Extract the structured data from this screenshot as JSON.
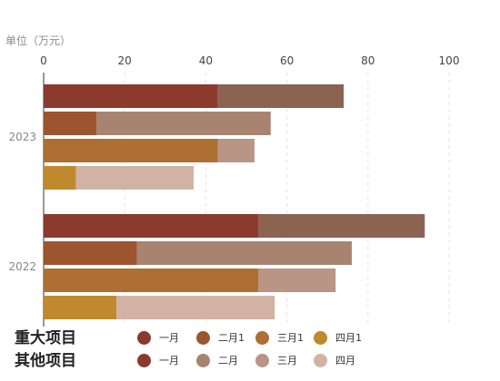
{
  "unit_label": "单位（万元）",
  "chart_data": {
    "type": "bar",
    "orientation": "horizontal",
    "stacked": true,
    "xlim": [
      0,
      100
    ],
    "xticks": [
      "0",
      "20",
      "40",
      "60",
      "80",
      "100"
    ],
    "categories": [
      "2023",
      "2022"
    ],
    "groups": [
      {
        "category": "2023",
        "bars": [
          {
            "major": 43,
            "other": 31,
            "major_color": "#8b3a2e",
            "other_color": "#8b6351"
          },
          {
            "major": 13,
            "other": 43,
            "major_color": "#9c552f",
            "other_color": "#a88470"
          },
          {
            "major": 43,
            "other": 9,
            "major_color": "#ad6f32",
            "other_color": "#b89584"
          },
          {
            "major": 8,
            "other": 29,
            "major_color": "#c0892e",
            "other_color": "#d2b3a3"
          }
        ]
      },
      {
        "category": "2022",
        "bars": [
          {
            "major": 53,
            "other": 41,
            "major_color": "#8b3a2e",
            "other_color": "#8b6351"
          },
          {
            "major": 23,
            "other": 53,
            "major_color": "#9c552f",
            "other_color": "#a88470"
          },
          {
            "major": 53,
            "other": 19,
            "major_color": "#ad6f32",
            "other_color": "#b89584"
          },
          {
            "major": 18,
            "other": 39,
            "major_color": "#c0892e",
            "other_color": "#d2b3a3"
          }
        ]
      }
    ],
    "legend": [
      {
        "title": "重大项目",
        "items": [
          {
            "label": "一月",
            "color": "#8b3a2e"
          },
          {
            "label": "二月1",
            "color": "#9c552f"
          },
          {
            "label": "三月1",
            "color": "#ad6f32"
          },
          {
            "label": "四月1",
            "color": "#c0892e"
          }
        ]
      },
      {
        "title": "其他项目",
        "items": [
          {
            "label": "一月",
            "color": "#8b3a2e"
          },
          {
            "label": "二月",
            "color": "#a88470"
          },
          {
            "label": "三月",
            "color": "#b89584"
          },
          {
            "label": "四月",
            "color": "#d2b3a3"
          }
        ]
      }
    ]
  }
}
